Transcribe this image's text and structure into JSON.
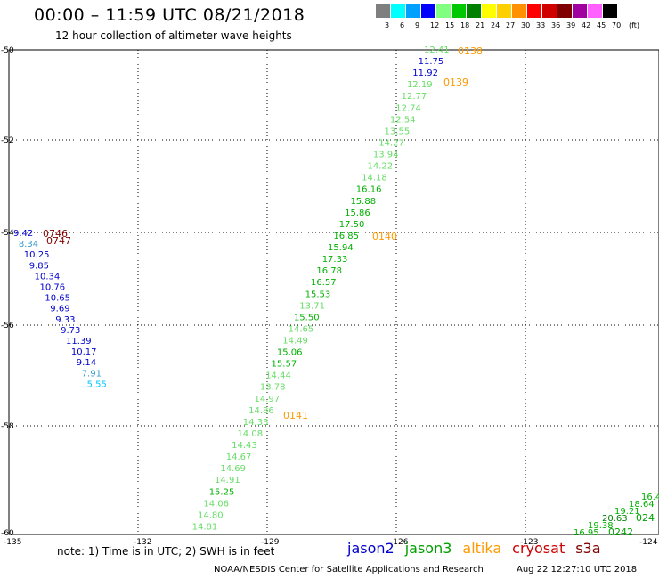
{
  "header": {
    "title": "00:00 – 11:59 UTC 08/21/2018",
    "subtitle": "12 hour collection of altimeter wave heights"
  },
  "color_scale": {
    "unit": "(ft)",
    "bins": [
      {
        "label": "3",
        "color": "#7f7f7f"
      },
      {
        "label": "6",
        "color": "#00ffff"
      },
      {
        "label": "9",
        "color": "#00a0ff"
      },
      {
        "label": "12",
        "color": "#0000ff"
      },
      {
        "label": "15",
        "color": "#80ff80"
      },
      {
        "label": "18",
        "color": "#00c800"
      },
      {
        "label": "21",
        "color": "#008000"
      },
      {
        "label": "24",
        "color": "#ffff00"
      },
      {
        "label": "27",
        "color": "#ffd000"
      },
      {
        "label": "30",
        "color": "#ff9000"
      },
      {
        "label": "33",
        "color": "#ff0000"
      },
      {
        "label": "36",
        "color": "#d00000"
      },
      {
        "label": "39",
        "color": "#800000"
      },
      {
        "label": "42",
        "color": "#a000a0"
      },
      {
        "label": "45",
        "color": "#ff60ff"
      },
      {
        "label": "70",
        "color": "#000000"
      }
    ]
  },
  "map": {
    "lat_range": [
      -60,
      -50
    ],
    "lon_range": [
      -135,
      -124
    ],
    "y_ticks": [
      "-50",
      "-52",
      "-54",
      "-56",
      "-58",
      "-60"
    ],
    "x_ticks": [
      "-135",
      "-132",
      "-129",
      "-126",
      "-123",
      "-124"
    ],
    "grid": "dotted"
  },
  "colors": {
    "jason2": "#0000cc",
    "jason3": "#00a000",
    "altika": "#ff9900",
    "cryosat": "#cc0000",
    "s3a": "#800000",
    "swh_light": "#66dd66",
    "swh_mid": "#00b000",
    "swh_dark": "#008000",
    "swh_cyan": "#00c8ff",
    "swh_teal": "#3399cc"
  },
  "passes": [
    {
      "label": "0138",
      "sat": "altika"
    },
    {
      "label": "0139",
      "sat": "altika"
    },
    {
      "label": "0140",
      "sat": "altika"
    },
    {
      "label": "0141",
      "sat": "altika"
    },
    {
      "label": "0746",
      "sat": "s3a"
    },
    {
      "label": "0747",
      "sat": "s3a"
    },
    {
      "label": "0242",
      "sat": "jason3"
    },
    {
      "label": "024",
      "sat": "jason3"
    }
  ],
  "track_main": [
    {
      "v": "12.41",
      "c": "swh_light"
    },
    {
      "v": "11.75",
      "c": "jason2"
    },
    {
      "v": "11.92",
      "c": "jason2"
    },
    {
      "v": "12.19",
      "c": "swh_light"
    },
    {
      "v": "12.77",
      "c": "swh_light"
    },
    {
      "v": "12.74",
      "c": "swh_light"
    },
    {
      "v": "12.54",
      "c": "swh_light"
    },
    {
      "v": "13.55",
      "c": "swh_light"
    },
    {
      "v": "14.27",
      "c": "swh_light"
    },
    {
      "v": "13.94",
      "c": "swh_light"
    },
    {
      "v": "14.22",
      "c": "swh_light"
    },
    {
      "v": "14.18",
      "c": "swh_light"
    },
    {
      "v": "16.16",
      "c": "swh_mid"
    },
    {
      "v": "15.88",
      "c": "swh_mid"
    },
    {
      "v": "15.86",
      "c": "swh_mid"
    },
    {
      "v": "17.50",
      "c": "swh_mid"
    },
    {
      "v": "16.85",
      "c": "swh_mid"
    },
    {
      "v": "15.94",
      "c": "swh_mid"
    },
    {
      "v": "17.33",
      "c": "swh_mid"
    },
    {
      "v": "16.78",
      "c": "swh_mid"
    },
    {
      "v": "16.57",
      "c": "swh_mid"
    },
    {
      "v": "15.53",
      "c": "swh_mid"
    },
    {
      "v": "13.71",
      "c": "swh_light"
    },
    {
      "v": "15.50",
      "c": "swh_mid"
    },
    {
      "v": "14.65",
      "c": "swh_light"
    },
    {
      "v": "14.49",
      "c": "swh_light"
    },
    {
      "v": "15.06",
      "c": "swh_mid"
    },
    {
      "v": "15.57",
      "c": "swh_mid"
    },
    {
      "v": "14.44",
      "c": "swh_light"
    },
    {
      "v": "13.78",
      "c": "swh_light"
    },
    {
      "v": "14.97",
      "c": "swh_light"
    },
    {
      "v": "14.86",
      "c": "swh_light"
    },
    {
      "v": "14.33",
      "c": "swh_light"
    },
    {
      "v": "14.08",
      "c": "swh_light"
    },
    {
      "v": "14.43",
      "c": "swh_light"
    },
    {
      "v": "14.67",
      "c": "swh_light"
    },
    {
      "v": "14.69",
      "c": "swh_light"
    },
    {
      "v": "14.91",
      "c": "swh_light"
    },
    {
      "v": "15.25",
      "c": "swh_mid"
    },
    {
      "v": "14.06",
      "c": "swh_light"
    },
    {
      "v": "14.80",
      "c": "swh_light"
    },
    {
      "v": "14.81",
      "c": "swh_light"
    }
  ],
  "track_left": [
    {
      "v": "9.42",
      "c": "jason2"
    },
    {
      "v": "8.34",
      "c": "swh_teal"
    },
    {
      "v": "10.25",
      "c": "jason2"
    },
    {
      "v": "9.85",
      "c": "jason2"
    },
    {
      "v": "10.34",
      "c": "jason2"
    },
    {
      "v": "10.76",
      "c": "jason2"
    },
    {
      "v": "10.65",
      "c": "jason2"
    },
    {
      "v": "9.69",
      "c": "jason2"
    },
    {
      "v": "9.33",
      "c": "jason2"
    },
    {
      "v": "9.73",
      "c": "jason2"
    },
    {
      "v": "11.39",
      "c": "jason2"
    },
    {
      "v": "10.17",
      "c": "jason2"
    },
    {
      "v": "9.14",
      "c": "jason2"
    },
    {
      "v": "7.91",
      "c": "swh_teal"
    },
    {
      "v": "5.55",
      "c": "swh_cyan"
    }
  ],
  "track_right": [
    {
      "v": "16.4",
      "c": "swh_mid"
    },
    {
      "v": "18.64",
      "c": "swh_mid"
    },
    {
      "v": "19.21",
      "c": "swh_mid"
    },
    {
      "v": "20.63",
      "c": "swh_dark"
    },
    {
      "v": "19.38",
      "c": "swh_mid"
    },
    {
      "v": "16.95",
      "c": "swh_mid"
    }
  ],
  "footer": {
    "note": "note:  1) Time is in UTC;  2) SWH is in feet",
    "legend": [
      {
        "name": "jason2",
        "sat": "jason2"
      },
      {
        "name": "jason3",
        "sat": "jason3"
      },
      {
        "name": "altika",
        "sat": "altika"
      },
      {
        "name": "cryosat",
        "sat": "cryosat"
      },
      {
        "name": "s3a",
        "sat": "s3a"
      }
    ],
    "credit": "NOAA/NESDIS Center for Satellite Applications and Research",
    "timestamp": "Aug 22 12:27:10 UTC 2018"
  }
}
